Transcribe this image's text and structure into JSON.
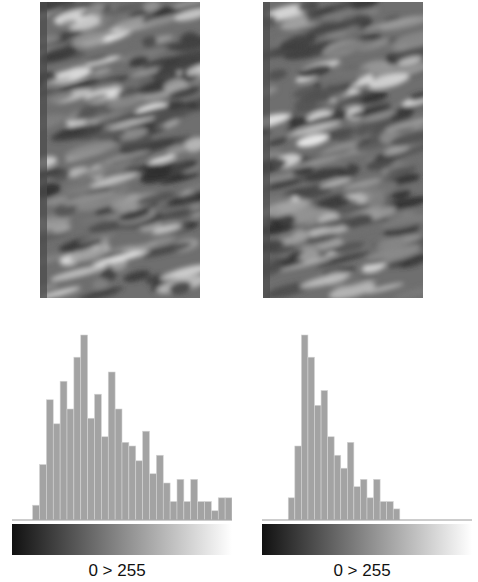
{
  "chart_data": [
    {
      "type": "histogram",
      "x_label": "0 > 255",
      "bins": [
        0,
        8,
        16,
        24,
        32,
        40,
        48,
        56,
        64,
        72,
        80,
        88,
        96,
        104,
        112,
        120,
        128,
        136,
        144,
        152,
        160,
        168,
        176,
        184,
        192,
        200,
        208,
        216,
        224,
        232,
        240,
        248,
        256
      ],
      "values": [
        0,
        0,
        0,
        8,
        30,
        65,
        52,
        75,
        60,
        88,
        100,
        55,
        68,
        45,
        80,
        60,
        42,
        40,
        32,
        48,
        25,
        35,
        20,
        10,
        22,
        10,
        22,
        10,
        10,
        5,
        12,
        12
      ],
      "xlim": [
        0,
        256
      ],
      "ylim": [
        0,
        100
      ],
      "tick_labels": false,
      "color": "#a3a3a3"
    },
    {
      "type": "histogram",
      "x_label": "0 > 255",
      "bins": [
        0,
        8,
        16,
        24,
        32,
        40,
        48,
        56,
        64,
        72,
        80,
        88,
        96,
        104,
        112,
        120,
        128,
        136,
        144,
        152,
        160,
        168,
        176,
        184,
        192,
        200,
        208,
        216,
        224,
        232,
        240,
        248,
        256
      ],
      "values": [
        0,
        0,
        0,
        0,
        12,
        40,
        100,
        88,
        62,
        70,
        45,
        35,
        28,
        42,
        18,
        22,
        12,
        22,
        10,
        10,
        6,
        0,
        0,
        0,
        0,
        0,
        0,
        0,
        0,
        0,
        0,
        0
      ],
      "xlim": [
        0,
        256
      ],
      "ylim": [
        0,
        100
      ],
      "tick_labels": false,
      "color": "#a3a3a3"
    }
  ]
}
